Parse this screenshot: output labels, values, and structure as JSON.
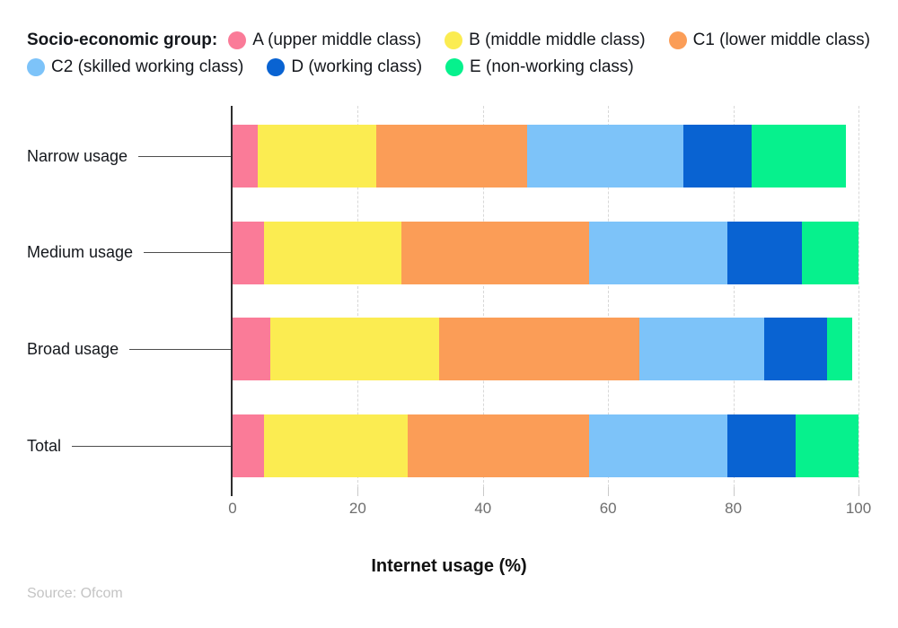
{
  "legend": {
    "title": "Socio-economic group:",
    "items": [
      {
        "label": "A (upper middle class)",
        "color": "#FA7B98",
        "row": 1
      },
      {
        "label": "B (middle middle class)",
        "color": "#FBEC51",
        "row": 1
      },
      {
        "label": "C1 (lower middle class)",
        "color": "#FB9D57",
        "row": 1
      },
      {
        "label": "C2 (skilled working class)",
        "color": "#7DC3F9",
        "row": 2
      },
      {
        "label": "D (working class)",
        "color": "#0963D2",
        "row": 2
      },
      {
        "label": "E (non-working class)",
        "color": "#06F18D",
        "row": 2
      }
    ]
  },
  "chart_data": {
    "type": "bar",
    "orientation": "horizontal",
    "stacked": true,
    "categories": [
      "Narrow usage",
      "Medium usage",
      "Broad usage",
      "Total"
    ],
    "series": [
      {
        "name": "A (upper middle class)",
        "color": "#FA7B98",
        "values": [
          4,
          5,
          6,
          5
        ]
      },
      {
        "name": "B (middle middle class)",
        "color": "#FBEC51",
        "values": [
          19,
          22,
          27,
          23
        ]
      },
      {
        "name": "C1 (lower middle class)",
        "color": "#FB9D57",
        "values": [
          24,
          30,
          32,
          29
        ]
      },
      {
        "name": "C2 (skilled working class)",
        "color": "#7DC3F9",
        "values": [
          25,
          22,
          20,
          22
        ]
      },
      {
        "name": "D (working class)",
        "color": "#0963D2",
        "values": [
          11,
          12,
          10,
          11
        ]
      },
      {
        "name": "E (non-working class)",
        "color": "#06F18D",
        "values": [
          15,
          9,
          4,
          10
        ]
      }
    ],
    "xlabel": "Internet usage (%)",
    "xlim": [
      0,
      100
    ],
    "xticks": [
      0,
      20,
      40,
      60,
      80,
      100
    ],
    "grid": "dashed-vertical",
    "legend_position": "top"
  },
  "source": "Source: Ofcom",
  "colors": {
    "axis_line": "#2e2e2e",
    "gridline": "#d8d8d8",
    "tick_label": "#6e6e6e",
    "text": "#14171c",
    "source_text": "#c4c4c4"
  }
}
